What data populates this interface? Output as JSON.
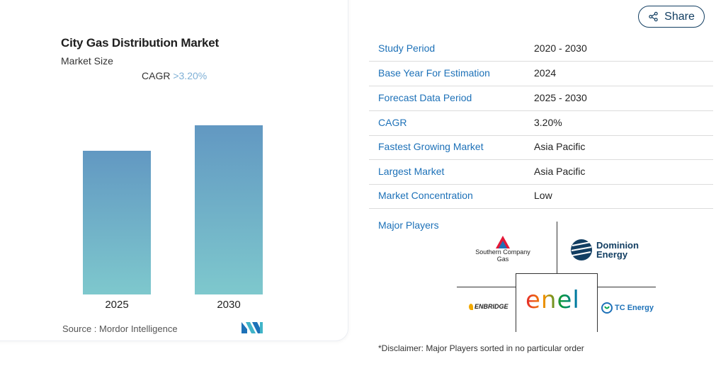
{
  "card": {
    "title": "City Gas Distribution Market",
    "subtitle": "Market Size",
    "cagr_label": "CAGR",
    "cagr_value": ">3.20%",
    "source": "Source : Mordor Intelligence"
  },
  "chart_data": {
    "type": "bar",
    "title": "City Gas Distribution Market",
    "subtitle": "Market Size",
    "categories": [
      "2025",
      "2030"
    ],
    "values": [
      0.85,
      1.0
    ],
    "annotation": "CAGR >3.20%",
    "colors": {
      "top": "#6298c2",
      "bottom": "#7ec8cd"
    }
  },
  "share": {
    "label": "Share",
    "icon": "share-icon"
  },
  "stats": [
    {
      "key": "Study Period",
      "value": "2020 - 2030"
    },
    {
      "key": "Base Year For Estimation",
      "value": "2024"
    },
    {
      "key": "Forecast Data Period",
      "value": "2025 - 2030"
    },
    {
      "key": "CAGR",
      "value": "3.20%"
    },
    {
      "key": "Fastest Growing Market",
      "value": "Asia Pacific"
    },
    {
      "key": "Largest Market",
      "value": "Asia Pacific"
    },
    {
      "key": "Market Concentration",
      "value": "Low"
    }
  ],
  "players": {
    "label": "Major Players",
    "logos": {
      "southern": {
        "line1": "Southern Company",
        "line2": "Gas"
      },
      "dominion": {
        "line1": "Dominion",
        "line2": "Energy"
      },
      "enbridge": {
        "text": "ENBRIDGE"
      },
      "enel": {
        "text": "enel"
      },
      "tc": {
        "text": "TC Energy"
      }
    }
  },
  "disclaimer": "*Disclaimer: Major Players sorted in no particular order",
  "colors": {
    "accent": "#1d71b8",
    "navy": "#123e62"
  }
}
